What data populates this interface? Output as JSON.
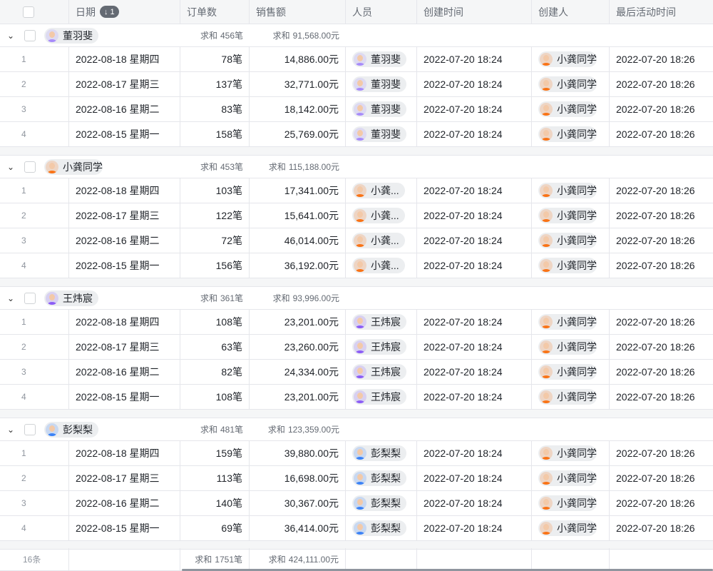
{
  "header": {
    "date": "日期",
    "sort_badge": "↓ 1",
    "orders": "订单数",
    "sales": "销售额",
    "person": "人员",
    "created_time": "创建时间",
    "creator": "创建人",
    "last_active": "最后活动时间"
  },
  "avatar_colors": {
    "董羽斐": "#a78bfa",
    "小龚同学": "#f97316",
    "王炜宸": "#8b5cf6",
    "彭梨梨": "#3b82f6"
  },
  "sum_label": "求和",
  "groups": [
    {
      "name": "董羽斐",
      "sum_orders": "456笔",
      "sum_sales": "91,568.00元",
      "person_display": "董羽斐",
      "rows": [
        {
          "i": "1",
          "date": "2022-08-18 星期四",
          "orders": "78笔",
          "sales": "14,886.00元"
        },
        {
          "i": "2",
          "date": "2022-08-17 星期三",
          "orders": "137笔",
          "sales": "32,771.00元"
        },
        {
          "i": "3",
          "date": "2022-08-16 星期二",
          "orders": "83笔",
          "sales": "18,142.00元"
        },
        {
          "i": "4",
          "date": "2022-08-15 星期一",
          "orders": "158笔",
          "sales": "25,769.00元"
        }
      ]
    },
    {
      "name": "小龚同学",
      "sum_orders": "453笔",
      "sum_sales": "115,188.00元",
      "person_display": "小龚...",
      "rows": [
        {
          "i": "1",
          "date": "2022-08-18 星期四",
          "orders": "103笔",
          "sales": "17,341.00元"
        },
        {
          "i": "2",
          "date": "2022-08-17 星期三",
          "orders": "122笔",
          "sales": "15,641.00元"
        },
        {
          "i": "3",
          "date": "2022-08-16 星期二",
          "orders": "72笔",
          "sales": "46,014.00元"
        },
        {
          "i": "4",
          "date": "2022-08-15 星期一",
          "orders": "156笔",
          "sales": "36,192.00元"
        }
      ]
    },
    {
      "name": "王炜宸",
      "sum_orders": "361笔",
      "sum_sales": "93,996.00元",
      "person_display": "王炜宸",
      "rows": [
        {
          "i": "1",
          "date": "2022-08-18 星期四",
          "orders": "108笔",
          "sales": "23,201.00元"
        },
        {
          "i": "2",
          "date": "2022-08-17 星期三",
          "orders": "63笔",
          "sales": "23,260.00元"
        },
        {
          "i": "3",
          "date": "2022-08-16 星期二",
          "orders": "82笔",
          "sales": "24,334.00元"
        },
        {
          "i": "4",
          "date": "2022-08-15 星期一",
          "orders": "108笔",
          "sales": "23,201.00元"
        }
      ]
    },
    {
      "name": "彭梨梨",
      "sum_orders": "481笔",
      "sum_sales": "123,359.00元",
      "person_display": "彭梨梨",
      "rows": [
        {
          "i": "1",
          "date": "2022-08-18 星期四",
          "orders": "159笔",
          "sales": "39,880.00元"
        },
        {
          "i": "2",
          "date": "2022-08-17 星期三",
          "orders": "113笔",
          "sales": "16,698.00元"
        },
        {
          "i": "3",
          "date": "2022-08-16 星期二",
          "orders": "140笔",
          "sales": "30,367.00元"
        },
        {
          "i": "4",
          "date": "2022-08-15 星期一",
          "orders": "69笔",
          "sales": "36,414.00元"
        }
      ]
    }
  ],
  "common": {
    "created_time": "2022-07-20 18:24",
    "creator": "小龚同学",
    "last_active": "2022-07-20 18:26"
  },
  "footer": {
    "count": "16条",
    "sum_orders": "1751笔",
    "sum_sales": "424,111.00元"
  }
}
